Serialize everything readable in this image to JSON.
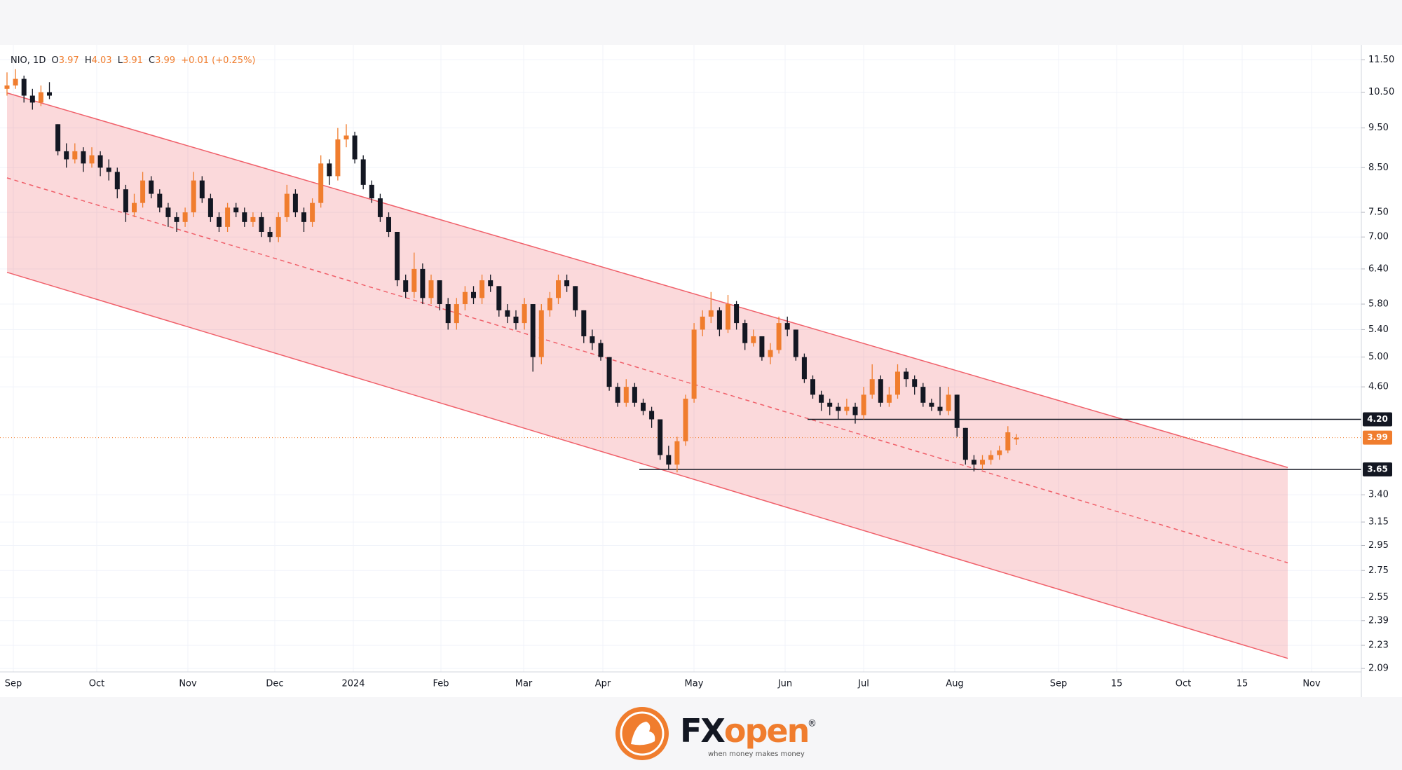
{
  "chart_data": {
    "type": "candlestick",
    "log": true,
    "grid": true,
    "symbol": "NIO, 1D",
    "o_label": "O",
    "h_label": "H",
    "l_label": "L",
    "c_label": "C",
    "change": "+0.01 (+0.25%)",
    "up_color": "#f07d2e",
    "down_color": "#131722",
    "channel_color": "#f0606a",
    "ylim": [
      2.07,
      11.85
    ],
    "yticks": [
      {
        "value": 11.5,
        "label": "11.50"
      },
      {
        "value": 10.5,
        "label": "10.50"
      },
      {
        "value": 9.5,
        "label": "9.50"
      },
      {
        "value": 8.5,
        "label": "8.50"
      },
      {
        "value": 7.5,
        "label": "7.50"
      },
      {
        "value": 7,
        "label": "7.00"
      },
      {
        "value": 6.4,
        "label": "6.40"
      },
      {
        "value": 5.8,
        "label": "5.80"
      },
      {
        "value": 5.4,
        "label": "5.40"
      },
      {
        "value": 5,
        "label": "5.00"
      },
      {
        "value": 4.6,
        "label": "4.60"
      },
      {
        "value": 3.4,
        "label": "3.40"
      },
      {
        "value": 3.15,
        "label": "3.15"
      },
      {
        "value": 2.95,
        "label": "2.95"
      },
      {
        "value": 2.75,
        "label": "2.75"
      },
      {
        "value": 2.55,
        "label": "2.55"
      },
      {
        "value": 2.39,
        "label": "2.39"
      },
      {
        "value": 2.23,
        "label": "2.23"
      },
      {
        "value": 2.09,
        "label": "2.09"
      }
    ],
    "x_labels": [
      "Sep",
      "Oct",
      "Nov",
      "Dec",
      "2024",
      "Feb",
      "Mar",
      "Apr",
      "May",
      "Jun",
      "Jul",
      "Aug",
      "Sep",
      "15",
      "Oct",
      "15",
      "Nov"
    ],
    "channel": {
      "upper": [
        10.48,
        3.67
      ],
      "middle": [
        8.26,
        2.81
      ],
      "lower": [
        6.34,
        2.15
      ]
    },
    "levels": [
      {
        "value": 4.2,
        "label": "4.20"
      },
      {
        "value": 3.65,
        "label": "3.65"
      }
    ],
    "last_price": {
      "value": 3.99,
      "label": "3.99"
    },
    "ohlc": [
      [
        10.6,
        11.1,
        10.4,
        10.7
      ],
      [
        10.7,
        11.2,
        10.6,
        10.9
      ],
      [
        10.9,
        11.0,
        10.2,
        10.4
      ],
      [
        10.4,
        10.6,
        10.0,
        10.2
      ],
      [
        10.2,
        10.7,
        10.1,
        10.5
      ],
      [
        10.5,
        10.8,
        10.3,
        10.4
      ],
      [
        9.6,
        9.6,
        8.8,
        8.9
      ],
      [
        8.9,
        9.1,
        8.5,
        8.7
      ],
      [
        8.7,
        9.1,
        8.6,
        8.9
      ],
      [
        8.9,
        9.0,
        8.4,
        8.6
      ],
      [
        8.6,
        9.0,
        8.5,
        8.8
      ],
      [
        8.8,
        8.9,
        8.3,
        8.5
      ],
      [
        8.5,
        8.7,
        8.2,
        8.4
      ],
      [
        8.4,
        8.5,
        7.8,
        8.0
      ],
      [
        8.0,
        8.1,
        7.3,
        7.5
      ],
      [
        7.5,
        7.9,
        7.4,
        7.7
      ],
      [
        7.7,
        8.4,
        7.6,
        8.2
      ],
      [
        8.2,
        8.3,
        7.8,
        7.9
      ],
      [
        7.9,
        8.0,
        7.5,
        7.6
      ],
      [
        7.6,
        7.7,
        7.2,
        7.4
      ],
      [
        7.4,
        7.5,
        7.1,
        7.3
      ],
      [
        7.3,
        7.6,
        7.2,
        7.5
      ],
      [
        7.5,
        8.4,
        7.4,
        8.2
      ],
      [
        8.2,
        8.3,
        7.7,
        7.8
      ],
      [
        7.8,
        7.9,
        7.3,
        7.4
      ],
      [
        7.4,
        7.5,
        7.1,
        7.2
      ],
      [
        7.2,
        7.7,
        7.1,
        7.6
      ],
      [
        7.6,
        7.7,
        7.4,
        7.5
      ],
      [
        7.5,
        7.6,
        7.2,
        7.3
      ],
      [
        7.3,
        7.5,
        7.2,
        7.4
      ],
      [
        7.4,
        7.5,
        7.0,
        7.1
      ],
      [
        7.1,
        7.2,
        6.9,
        7.0
      ],
      [
        7.0,
        7.5,
        6.9,
        7.4
      ],
      [
        7.4,
        8.1,
        7.3,
        7.9
      ],
      [
        7.9,
        8.0,
        7.4,
        7.5
      ],
      [
        7.5,
        7.6,
        7.1,
        7.3
      ],
      [
        7.3,
        7.8,
        7.2,
        7.7
      ],
      [
        7.7,
        8.8,
        7.6,
        8.6
      ],
      [
        8.6,
        8.7,
        8.1,
        8.3
      ],
      [
        8.3,
        9.5,
        8.2,
        9.2
      ],
      [
        9.2,
        9.6,
        9.0,
        9.3
      ],
      [
        9.3,
        9.4,
        8.6,
        8.7
      ],
      [
        8.7,
        8.8,
        8.0,
        8.1
      ],
      [
        8.1,
        8.2,
        7.7,
        7.8
      ],
      [
        7.8,
        7.9,
        7.3,
        7.4
      ],
      [
        7.4,
        7.5,
        7.0,
        7.1
      ],
      [
        7.1,
        7.1,
        6.1,
        6.2
      ],
      [
        6.2,
        6.3,
        5.9,
        6.0
      ],
      [
        6.0,
        6.7,
        5.9,
        6.4
      ],
      [
        6.4,
        6.5,
        5.8,
        5.9
      ],
      [
        5.9,
        6.3,
        5.8,
        6.2
      ],
      [
        6.2,
        6.2,
        5.7,
        5.8
      ],
      [
        5.8,
        5.9,
        5.4,
        5.5
      ],
      [
        5.5,
        5.9,
        5.4,
        5.8
      ],
      [
        5.8,
        6.1,
        5.7,
        6.0
      ],
      [
        6.0,
        6.1,
        5.8,
        5.9
      ],
      [
        5.9,
        6.3,
        5.8,
        6.2
      ],
      [
        6.2,
        6.3,
        6.0,
        6.1
      ],
      [
        6.1,
        6.1,
        5.6,
        5.7
      ],
      [
        5.7,
        5.8,
        5.5,
        5.6
      ],
      [
        5.6,
        5.7,
        5.4,
        5.5
      ],
      [
        5.5,
        5.9,
        5.4,
        5.8
      ],
      [
        5.8,
        5.8,
        4.8,
        5.0
      ],
      [
        5.0,
        5.8,
        4.9,
        5.7
      ],
      [
        5.7,
        6.0,
        5.6,
        5.9
      ],
      [
        5.9,
        6.3,
        5.8,
        6.2
      ],
      [
        6.2,
        6.3,
        6.0,
        6.1
      ],
      [
        6.1,
        6.1,
        5.6,
        5.7
      ],
      [
        5.7,
        5.7,
        5.2,
        5.3
      ],
      [
        5.3,
        5.4,
        5.1,
        5.2
      ],
      [
        5.2,
        5.25,
        4.95,
        5.0
      ],
      [
        5.0,
        5.0,
        4.55,
        4.6
      ],
      [
        4.6,
        4.65,
        4.35,
        4.4
      ],
      [
        4.4,
        4.7,
        4.35,
        4.6
      ],
      [
        4.6,
        4.65,
        4.35,
        4.4
      ],
      [
        4.4,
        4.45,
        4.25,
        4.3
      ],
      [
        4.3,
        4.35,
        4.1,
        4.2
      ],
      [
        4.2,
        4.2,
        3.75,
        3.8
      ],
      [
        3.8,
        3.9,
        3.65,
        3.7
      ],
      [
        3.7,
        4.0,
        3.62,
        3.95
      ],
      [
        3.95,
        4.5,
        3.9,
        4.45
      ],
      [
        4.45,
        5.5,
        4.4,
        5.4
      ],
      [
        5.4,
        5.7,
        5.3,
        5.6
      ],
      [
        5.6,
        6.0,
        5.5,
        5.7
      ],
      [
        5.7,
        5.75,
        5.3,
        5.4
      ],
      [
        5.4,
        5.95,
        5.35,
        5.8
      ],
      [
        5.8,
        5.85,
        5.4,
        5.5
      ],
      [
        5.5,
        5.55,
        5.1,
        5.2
      ],
      [
        5.2,
        5.4,
        5.15,
        5.3
      ],
      [
        5.3,
        5.3,
        4.95,
        5.0
      ],
      [
        5.0,
        5.2,
        4.9,
        5.1
      ],
      [
        5.1,
        5.6,
        5.05,
        5.5
      ],
      [
        5.5,
        5.6,
        5.3,
        5.4
      ],
      [
        5.4,
        5.4,
        4.95,
        5.0
      ],
      [
        5.0,
        5.05,
        4.65,
        4.7
      ],
      [
        4.7,
        4.75,
        4.45,
        4.5
      ],
      [
        4.5,
        4.55,
        4.3,
        4.4
      ],
      [
        4.4,
        4.45,
        4.25,
        4.35
      ],
      [
        4.35,
        4.4,
        4.2,
        4.3
      ],
      [
        4.3,
        4.45,
        4.25,
        4.35
      ],
      [
        4.35,
        4.4,
        4.15,
        4.25
      ],
      [
        4.25,
        4.6,
        4.2,
        4.5
      ],
      [
        4.5,
        4.9,
        4.45,
        4.7
      ],
      [
        4.7,
        4.75,
        4.35,
        4.4
      ],
      [
        4.4,
        4.6,
        4.35,
        4.5
      ],
      [
        4.5,
        4.9,
        4.45,
        4.8
      ],
      [
        4.8,
        4.85,
        4.6,
        4.7
      ],
      [
        4.7,
        4.75,
        4.5,
        4.6
      ],
      [
        4.6,
        4.65,
        4.35,
        4.4
      ],
      [
        4.4,
        4.45,
        4.3,
        4.35
      ],
      [
        4.35,
        4.6,
        4.25,
        4.3
      ],
      [
        4.3,
        4.6,
        4.25,
        4.5
      ],
      [
        4.5,
        4.5,
        4.0,
        4.1
      ],
      [
        4.1,
        4.1,
        3.7,
        3.75
      ],
      [
        3.75,
        3.8,
        3.63,
        3.7
      ],
      [
        3.7,
        3.8,
        3.65,
        3.75
      ],
      [
        3.75,
        3.85,
        3.7,
        3.8
      ],
      [
        3.8,
        3.9,
        3.75,
        3.85
      ],
      [
        3.85,
        4.12,
        3.82,
        4.05
      ],
      [
        3.97,
        4.03,
        3.91,
        3.99
      ]
    ]
  },
  "footer": {
    "brand_fx": "FX",
    "brand_open": "open",
    "registered": "®",
    "tagline": "when money makes money"
  }
}
